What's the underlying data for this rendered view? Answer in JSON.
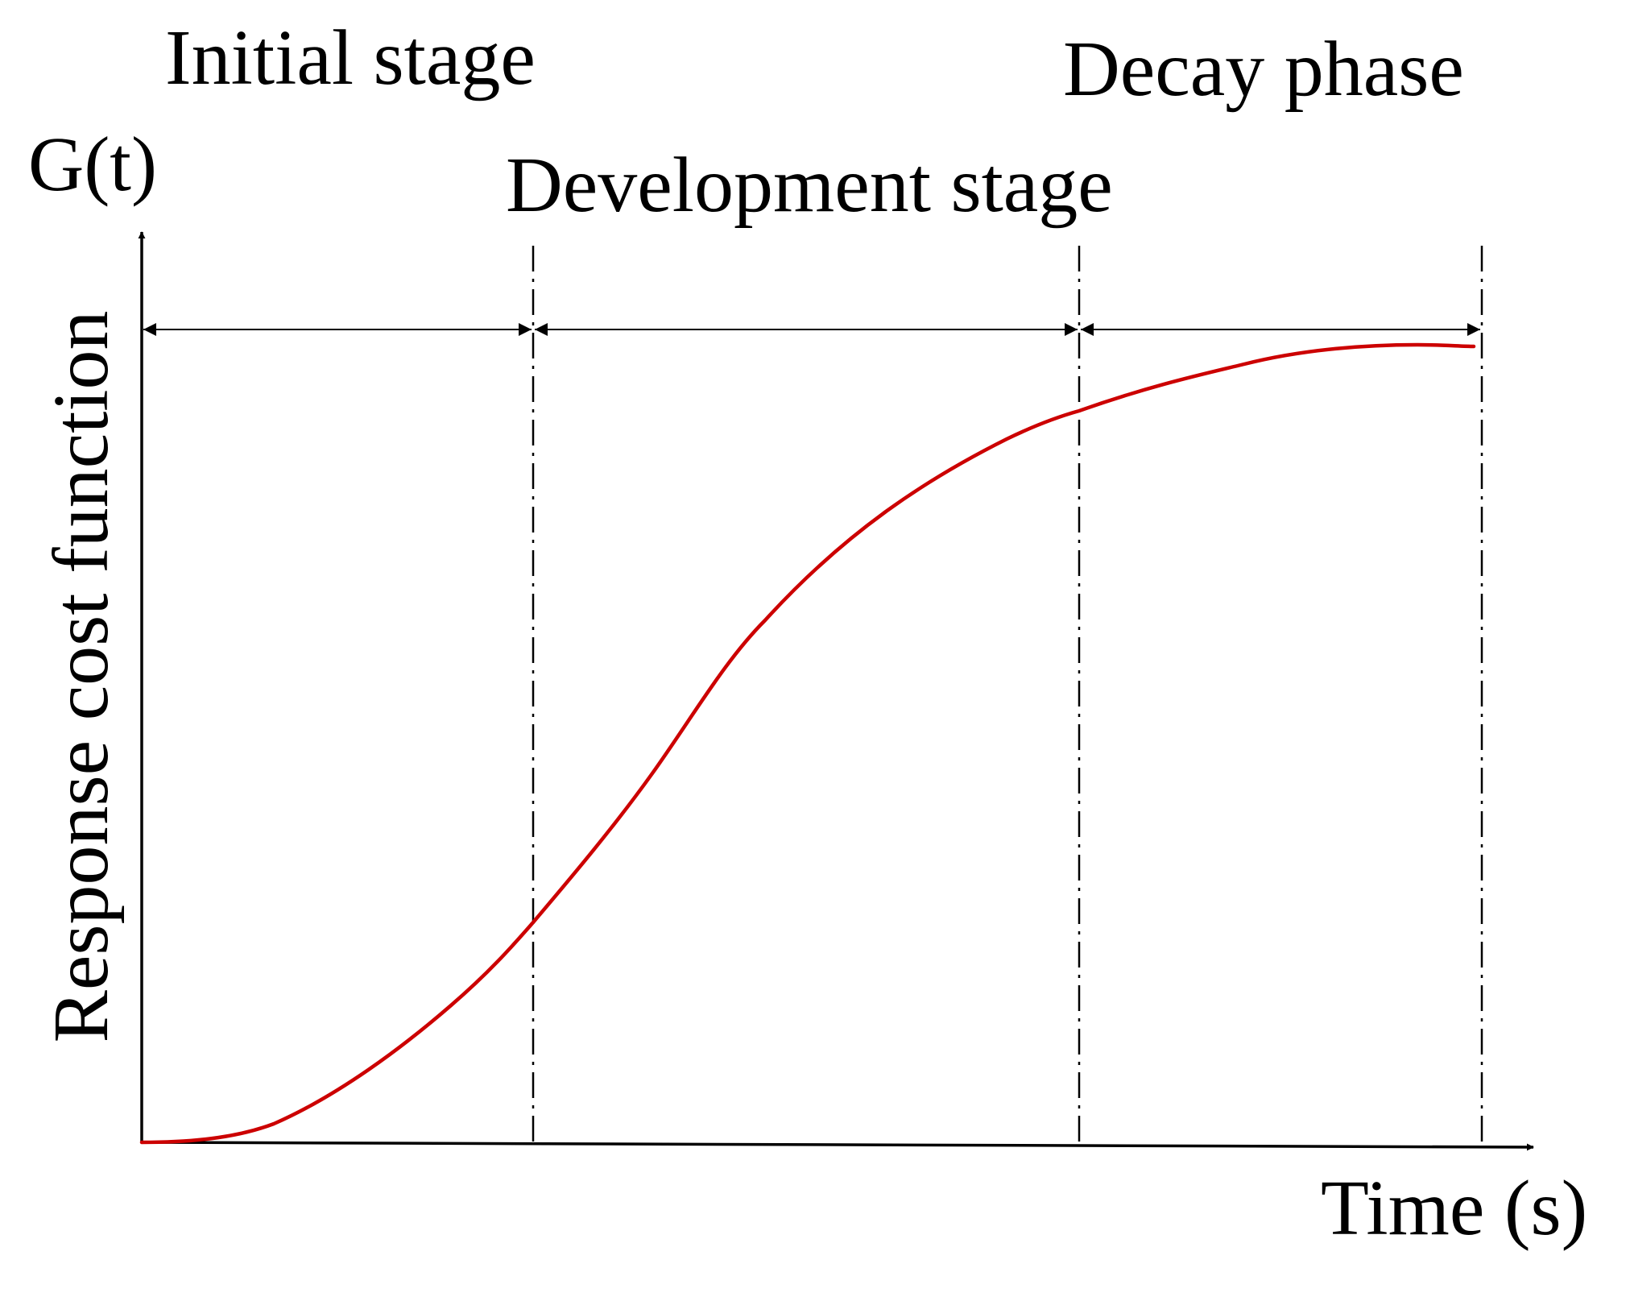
{
  "stages": {
    "initial": "Initial stage",
    "development": "Development stage",
    "decay": "Decay phase"
  },
  "axes": {
    "y_symbol": "G(t)",
    "y_label": "Response cost function",
    "x_label": "Time (s)"
  },
  "colors": {
    "curve": "#cc0000",
    "axis": "#000000"
  }
}
